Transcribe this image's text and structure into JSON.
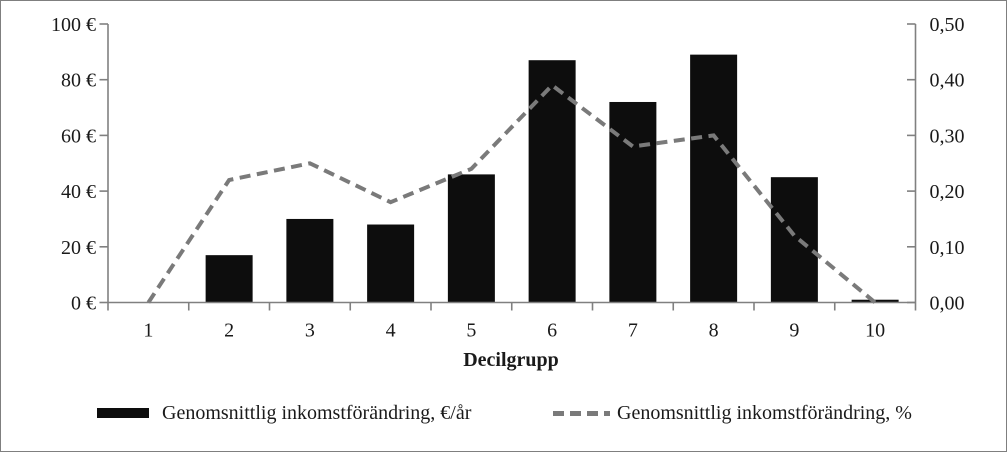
{
  "chart_data": {
    "type": "combo bar+line, dual y-axis",
    "categories": [
      "1",
      "2",
      "3",
      "4",
      "5",
      "6",
      "7",
      "8",
      "9",
      "10"
    ],
    "xlabel": "Decilgrupp",
    "series": [
      {
        "name": "Genomsnittlig inkomstförändring, €/år",
        "type": "bar",
        "axis": "left",
        "values": [
          0,
          17,
          30,
          28,
          46,
          87,
          72,
          89,
          45,
          1
        ]
      },
      {
        "name": "Genomsnittlig inkomstförändring, %",
        "type": "line",
        "style": "dashed",
        "axis": "right",
        "values": [
          0.0,
          0.22,
          0.25,
          0.18,
          0.24,
          0.39,
          0.28,
          0.3,
          0.12,
          0.0
        ]
      }
    ],
    "y_left": {
      "min": 0,
      "max": 100,
      "tick_labels": [
        "0 €",
        "20 €",
        "40 €",
        "60 €",
        "80 €",
        "100 €"
      ]
    },
    "y_right": {
      "min": 0,
      "max": 0.5,
      "tick_labels": [
        "0,00",
        "0,10",
        "0,20",
        "0,30",
        "0,40",
        "0,50"
      ]
    },
    "grid": false,
    "legend_position": "bottom",
    "colors": {
      "bar": "#0d0d0d",
      "line": "#7a7a7a",
      "axis": "#808080",
      "text": "#1a1a1a"
    }
  }
}
